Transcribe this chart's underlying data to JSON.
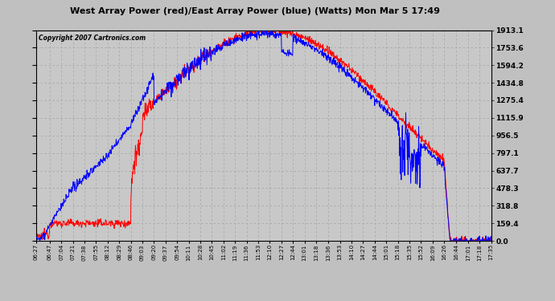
{
  "title": "West Array Power (red)/East Array Power (blue) (Watts) Mon Mar 5 17:49",
  "copyright": "Copyright 2007 Cartronics.com",
  "yticks": [
    0.0,
    159.4,
    318.8,
    478.3,
    637.7,
    797.1,
    956.5,
    1115.9,
    1275.4,
    1434.8,
    1594.2,
    1753.6,
    1913.1
  ],
  "ymax": 1913.1,
  "ymin": 0.0,
  "bg_color": "#c0c0c0",
  "plot_bg": "#c8c8c8",
  "grid_color": "#a0a0a0",
  "red_color": "#ff0000",
  "blue_color": "#0000ff",
  "xtick_labels": [
    "06:27",
    "06:47",
    "07:04",
    "07:21",
    "07:38",
    "07:55",
    "08:12",
    "08:29",
    "08:46",
    "09:03",
    "09:20",
    "09:37",
    "09:54",
    "10:11",
    "10:28",
    "10:45",
    "11:02",
    "11:19",
    "11:36",
    "11:53",
    "12:10",
    "12:27",
    "12:44",
    "13:01",
    "13:18",
    "13:36",
    "13:53",
    "14:10",
    "14:27",
    "14:44",
    "15:01",
    "15:18",
    "15:35",
    "15:52",
    "16:09",
    "16:26",
    "16:44",
    "17:01",
    "17:18",
    "17:35"
  ]
}
